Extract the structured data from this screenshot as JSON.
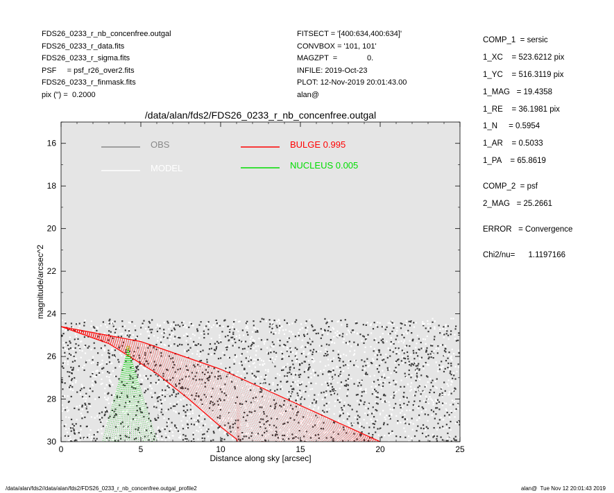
{
  "header_left": [
    "FDS26_0233_r_nb_concenfree.outgal",
    "FDS26_0233_r_data.fits",
    "FDS26_0233_r_sigma.fits",
    "PSF     = psf_r26_over2.fits",
    "FDS26_0233_r_finmask.fits",
    "pix (\") =  0.2000"
  ],
  "header_mid": [
    "FITSECT = '[400:634,400:634]'",
    "CONVBOX = '101, 101'",
    "MAGZPT  =              0.",
    "INFILE: 2019-Oct-23",
    "PLOT: 12-Nov-2019 20:01:43.00",
    "alan@"
  ],
  "sidebar": [
    "COMP_1  = sersic",
    "1_XC    = 523.6212 pix",
    "1_YC    = 516.3119 pix",
    "1_MAG   = 19.4358",
    "1_RE    = 36.1981 pix",
    "1_N     = 0.5954",
    "1_AR    = 0.5033",
    "1_PA    = 65.8619",
    "COMP_2  = psf",
    "2_MAG   = 25.2661",
    "ERROR   = Convergence",
    "Chi2/nu=      1.1197166"
  ],
  "footer": {
    "left": "/data/alan/fds2//data/alan/fds2/FDS26_0233_r_nb_concenfree.outgal_profile2",
    "right": "alan@  Tue Nov 12 20:01:43 2019"
  },
  "chart_data": {
    "type": "scatter",
    "title": "/data/alan/fds2/FDS26_0233_r_nb_concenfree.outgal",
    "xlabel": "Distance along sky [arcsec]",
    "ylabel": "magnitude/arcsec^2",
    "xlim": [
      0,
      25
    ],
    "ylim": [
      30,
      15
    ],
    "y_inverted": true,
    "x_ticks": [
      "0",
      "5",
      "10",
      "15",
      "20",
      "25"
    ],
    "y_ticks": [
      "16",
      "18",
      "20",
      "22",
      "24",
      "26",
      "28",
      "30"
    ],
    "legend": [
      {
        "label": "OBS",
        "color": "#888888"
      },
      {
        "label": "MODEL",
        "color": "#ffffff"
      },
      {
        "label": "BULGE  0.995",
        "color": "#ff0000"
      },
      {
        "label": "NUCLEUS  0.005",
        "color": "#00dd00"
      }
    ],
    "colors": {
      "background": "#e5e5e5",
      "obs": "#3a3a3a",
      "model": "#ffffff",
      "bulge": "#ff0000",
      "nucleus": "#00dd00"
    },
    "series": [
      {
        "name": "OBS",
        "description_values": {
          "x_range": [
            0,
            25
          ],
          "y_range": [
            24.2,
            30
          ]
        }
      },
      {
        "name": "BULGE  0.995",
        "profile_upper": {
          "x": [
            0,
            5,
            10,
            15,
            20
          ],
          "y": [
            24.6,
            25.3,
            26.6,
            28.3,
            30.0
          ]
        },
        "profile_lower": {
          "x": [
            0,
            3,
            6,
            8,
            10,
            11.2
          ],
          "y": [
            24.6,
            25.4,
            26.8,
            28.0,
            29.3,
            30.0
          ]
        }
      },
      {
        "name": "NUCLEUS  0.005",
        "apex": {
          "x": 4.2,
          "y": 25.6
        },
        "base": {
          "x": [
            2.6,
            6.0
          ],
          "y": [
            30,
            30
          ]
        }
      }
    ]
  }
}
